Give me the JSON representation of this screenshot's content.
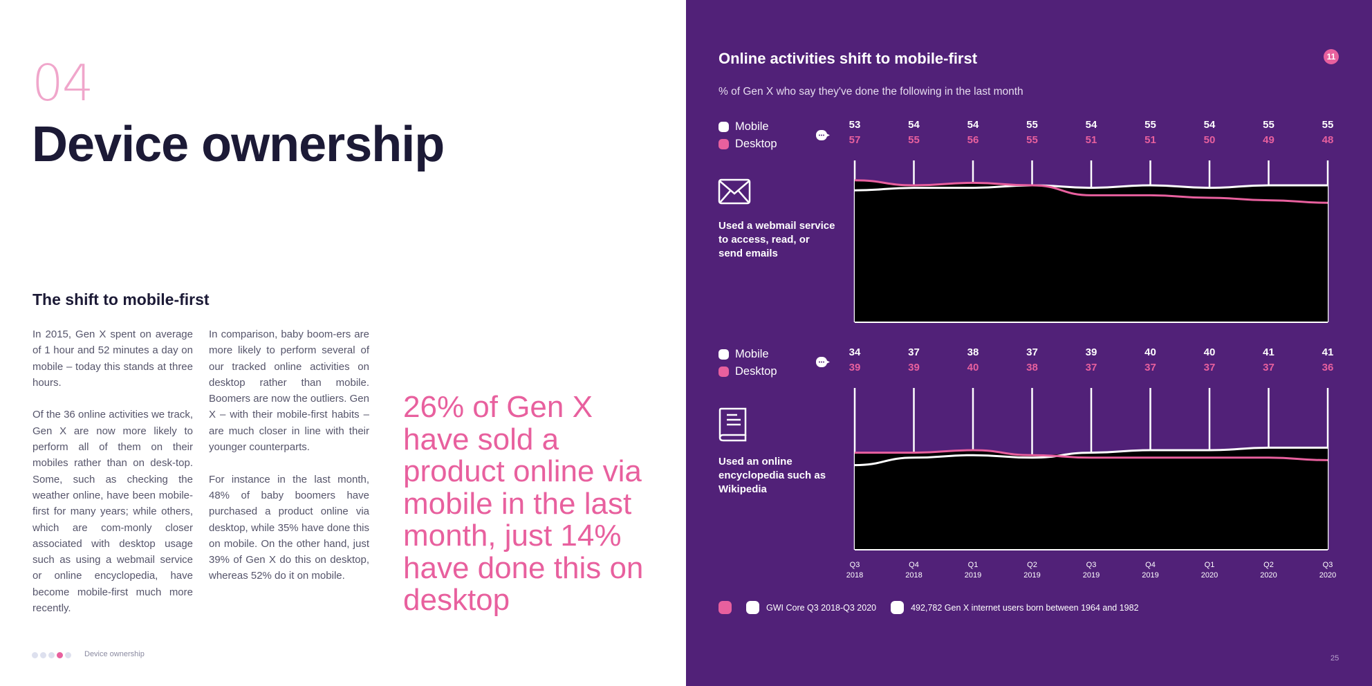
{
  "left": {
    "section_number": "04",
    "title": "Device ownership",
    "subheading": "The shift to mobile-first",
    "col1_p1": "In 2015, Gen X spent on average of 1 hour and 52 minutes a day on mobile – today this stands at three hours.",
    "col1_p2": "Of the 36 online activities we track, Gen X are now more likely to perform all of them on their mobiles rather than on desk-top. Some, such as checking the weather online, have been mobile-first for many years; while others, which are com-monly closer associated with desktop usage such as using a webmail service or online encyclopedia, have become mobile-first much more recently.",
    "col2_p1": "In comparison, baby boom-ers are more likely to perform several of our tracked online activities on desktop rather than mobile. Boomers are now the outliers. Gen X – with their mobile-first habits – are much closer in line with their younger counterparts.",
    "col2_p2": "For instance in the last month, 48% of baby boomers have purchased a product online via desktop, while 35% have done this on mobile. On the other hand, just 39% of Gen X do this on desktop, whereas 52% do it on mobile.",
    "quote": "26% of Gen X have sold a product online via mobile in the last month, just 14% have done this on desktop",
    "footer_label": "Device ownership"
  },
  "right": {
    "badge": "11",
    "page_number": "25",
    "source_label": "GWI Core Q3 2018-Q3 2020",
    "base_label": "492,782 Gen X internet users born between 1964 and 1982"
  },
  "colors": {
    "purple": "#512178",
    "pink": "#e8609e",
    "navy": "#1c1a36",
    "white": "#ffffff",
    "black": "#000000"
  },
  "chart_data": [
    {
      "type": "area",
      "title": "Online activities shift to mobile-first",
      "subtitle": "% of Gen X who say they've done the following in the last month",
      "activity": "Used a webmail service to access, read, or send emails",
      "icon": "envelope-icon",
      "categories": [
        "Q3 2018",
        "Q4 2018",
        "Q1 2019",
        "Q2 2019",
        "Q3 2019",
        "Q4 2019",
        "Q1 2020",
        "Q2 2020",
        "Q3 2020"
      ],
      "series": [
        {
          "name": "Mobile",
          "color": "#ffffff",
          "values": [
            53,
            54,
            54,
            55,
            54,
            55,
            54,
            55,
            55
          ]
        },
        {
          "name": "Desktop",
          "color": "#e8609e",
          "values": [
            57,
            55,
            56,
            55,
            51,
            51,
            50,
            49,
            48
          ]
        }
      ],
      "ylim": [
        0,
        70
      ]
    },
    {
      "type": "area",
      "activity": "Used an online encyclopedia such as Wikipedia",
      "icon": "book-icon",
      "categories": [
        "Q3 2018",
        "Q4 2018",
        "Q1 2019",
        "Q2 2019",
        "Q3 2019",
        "Q4 2019",
        "Q1 2020",
        "Q2 2020",
        "Q3 2020"
      ],
      "x_ticks": [
        {
          "quarter": "Q3",
          "year": "2018"
        },
        {
          "quarter": "Q4",
          "year": "2018"
        },
        {
          "quarter": "Q1",
          "year": "2019"
        },
        {
          "quarter": "Q2",
          "year": "2019"
        },
        {
          "quarter": "Q3",
          "year": "2019"
        },
        {
          "quarter": "Q4",
          "year": "2019"
        },
        {
          "quarter": "Q1",
          "year": "2020"
        },
        {
          "quarter": "Q2",
          "year": "2020"
        },
        {
          "quarter": "Q3",
          "year": "2020"
        }
      ],
      "series": [
        {
          "name": "Mobile",
          "color": "#ffffff",
          "values": [
            34,
            37,
            38,
            37,
            39,
            40,
            40,
            41,
            41
          ]
        },
        {
          "name": "Desktop",
          "color": "#e8609e",
          "values": [
            39,
            39,
            40,
            38,
            37,
            37,
            37,
            37,
            36
          ]
        }
      ],
      "ylim": [
        0,
        70
      ]
    }
  ]
}
